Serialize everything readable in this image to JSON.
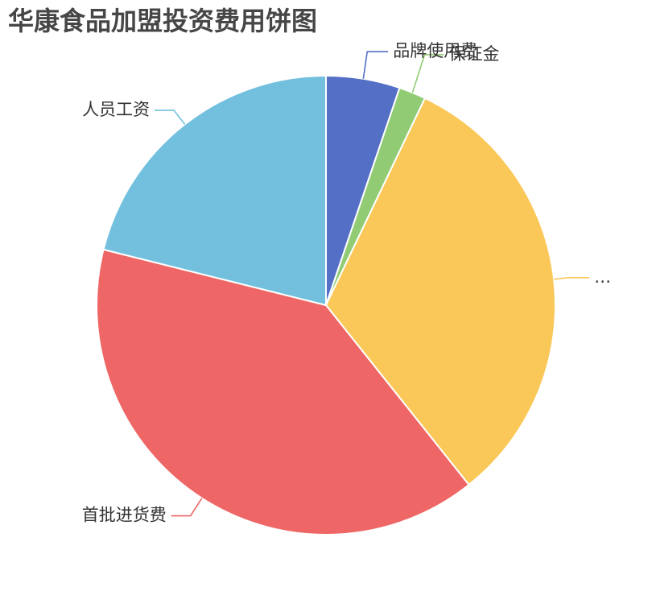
{
  "chart_data": {
    "type": "pie",
    "title": "华康食品加盟投资费用饼图",
    "series": [
      {
        "data": [
          {
            "name": "品牌使用费",
            "label": "品牌使用费",
            "value": 5.2,
            "color": "#5470c6"
          },
          {
            "name": "保证金",
            "label": "保证金",
            "value": 1.9,
            "color": "#91cc75"
          },
          {
            "name": "…",
            "label": "…",
            "value": 32.2,
            "color": "#fac858"
          },
          {
            "name": "首批进货费",
            "label": "首批进货费",
            "value": 39.6,
            "color": "#ee6666"
          },
          {
            "name": "人员工资",
            "label": "人员工资",
            "value": 21.1,
            "color": "#73c0de"
          }
        ]
      }
    ]
  }
}
